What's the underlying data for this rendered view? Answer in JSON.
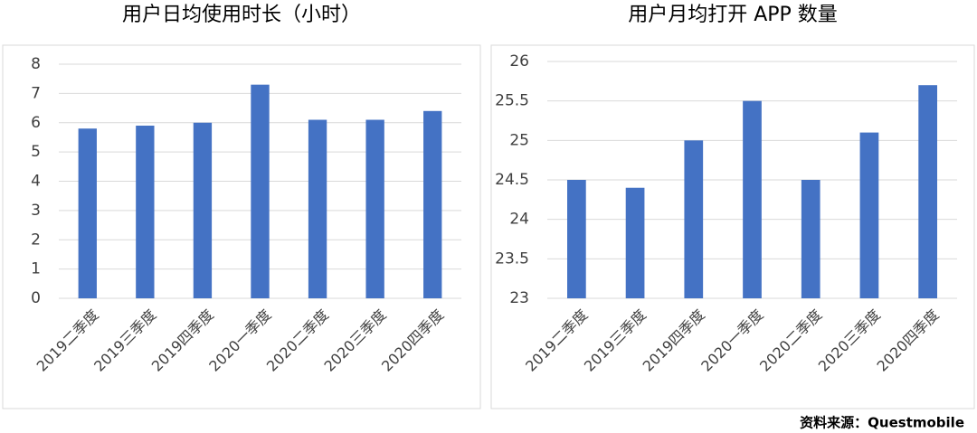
{
  "chart_data": [
    {
      "type": "bar",
      "title": "用户日均使用时长（小时）",
      "categories": [
        "2019二季度",
        "2019三季度",
        "2019四季度",
        "2020一季度",
        "2020二季度",
        "2020三季度",
        "2020四季度"
      ],
      "values": [
        5.8,
        5.9,
        6.0,
        7.3,
        6.1,
        6.1,
        6.4
      ],
      "color": "#4472c4",
      "ylim": [
        0,
        8
      ],
      "yticks": [
        0,
        1,
        2,
        3,
        4,
        5,
        6,
        7,
        8
      ],
      "grid": true
    },
    {
      "type": "bar",
      "title": "用户月均打开 APP 数量",
      "categories": [
        "2019二季度",
        "2019三季度",
        "2019四季度",
        "2020一季度",
        "2020二季度",
        "2020三季度",
        "2020四季度"
      ],
      "values": [
        24.5,
        24.4,
        25.0,
        25.5,
        24.5,
        25.1,
        25.7
      ],
      "color": "#4472c4",
      "ylim": [
        23,
        26
      ],
      "yticks": [
        23,
        23.5,
        24,
        24.5,
        25,
        25.5,
        26
      ],
      "grid": true
    }
  ],
  "source": "资料来源：Questmobile"
}
